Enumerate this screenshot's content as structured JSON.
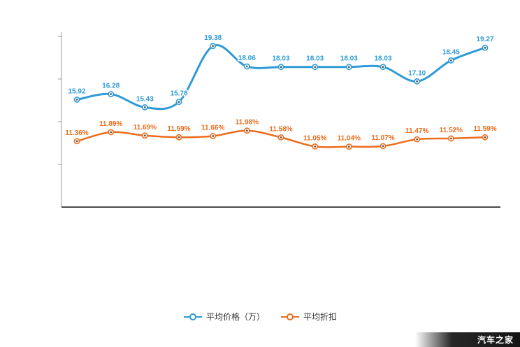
{
  "watermark": {
    "text": "汽车之家"
  },
  "chart_data": {
    "type": "line",
    "title": "",
    "xlabel": "",
    "ylabel": "",
    "categories": [
      "",
      "",
      "",
      "",
      "",
      "",
      "",
      "",
      "",
      "",
      "",
      "",
      ""
    ],
    "series": [
      {
        "name": "平均价格（万）",
        "color": "#2e9bd6",
        "values": [
          15.92,
          16.28,
          15.43,
          15.78,
          19.38,
          18.06,
          18.03,
          18.03,
          18.03,
          18.03,
          17.1,
          18.45,
          19.27
        ],
        "labels": [
          "15.92",
          "16.28",
          "15.43",
          "15.78",
          "19.38",
          "18.06",
          "18.03",
          "18.03",
          "18.03",
          "18.03",
          "17.10",
          "18.45",
          "19.27"
        ],
        "ylim": [
          9,
          20
        ]
      },
      {
        "name": "平均折扣",
        "color": "#ec6c1c",
        "values": [
          11.36,
          11.89,
          11.69,
          11.59,
          11.66,
          11.98,
          11.58,
          11.05,
          11.04,
          11.07,
          11.47,
          11.52,
          11.59
        ],
        "labels": [
          "11.36%",
          "11.89%",
          "11.69%",
          "11.59%",
          "11.66%",
          "11.98%",
          "11.58%",
          "11.05%",
          "11.04%",
          "11.07%",
          "11.47%",
          "11.52%",
          "11.59%"
        ],
        "ylim": [
          7.5,
          17.5
        ]
      }
    ],
    "layout": {
      "grid": false,
      "legend_position": "bottom",
      "x_axis_color": "#4a4a4a",
      "y_axis_color": "#9a9a9a",
      "x_tick_labels_visible": false,
      "y_tick_labels_visible": false
    }
  }
}
